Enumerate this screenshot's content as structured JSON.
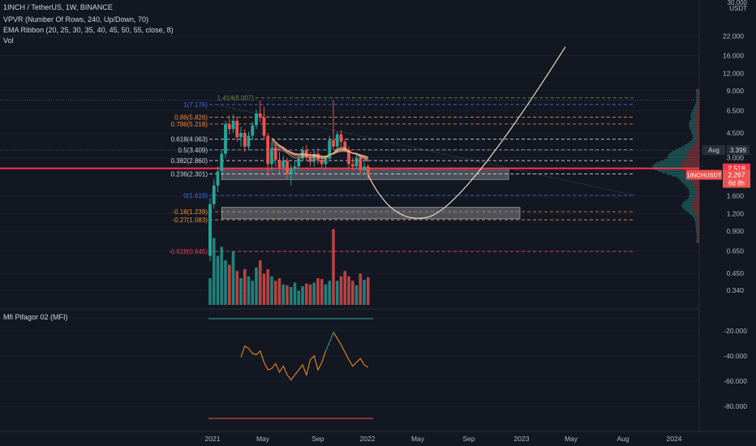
{
  "header": {
    "title": "1INCH / TetherUS, 1W, BINANCE",
    "indicators": [
      "VPVR (Number Of Rows, 240, Up/Down, 70)",
      "EMA Ribbon (20, 25, 30, 35, 40, 45, 50, 55, close, 8)",
      "Vol"
    ],
    "oscillator_title": "Mfi Pifagor 02 (MFI)"
  },
  "price_axis": {
    "top_label": "30.000",
    "unit": "USDT",
    "ticks": [
      "22.000",
      "16.000",
      "12.000",
      "9.000",
      "6.500",
      "4.500",
      "3.000",
      "1.600",
      "1.200",
      "0.900",
      "0.650",
      "0.450",
      "0.340"
    ],
    "avg_label": "Avg",
    "avg_value": "3.399",
    "price_line_value": "2.518",
    "symbol_tag": "1INCHUSDT",
    "last_price": "2.267",
    "countdown": "6d 8h"
  },
  "osc_axis": {
    "ticks": [
      "-20.000",
      "-40.000",
      "-60.000",
      "-80.000"
    ]
  },
  "time_axis": {
    "ticks": [
      "2021",
      "May",
      "Sep",
      "2022",
      "May",
      "Sep",
      "2023",
      "May",
      "Aug",
      "2024"
    ]
  },
  "fib_levels": [
    {
      "label": "1.414(8.007)",
      "value": 8.007,
      "color": "#6a8a4a"
    },
    {
      "label": "1(7.176)",
      "value": 7.176,
      "color": "#3f6fd8"
    },
    {
      "label": "0.86(5.826)",
      "value": 5.826,
      "color": "#ef8c3a"
    },
    {
      "label": "0.786(5.218)",
      "value": 5.218,
      "color": "#ef8c3a"
    },
    {
      "label": "0.618(4.063)",
      "value": 4.063,
      "color": "#d1d4dc"
    },
    {
      "label": "0.5(3.409)",
      "value": 3.409,
      "color": "#d1d4dc"
    },
    {
      "label": "0.382(2.860)",
      "value": 2.86,
      "color": "#d1d4dc"
    },
    {
      "label": "0.236(2.301)",
      "value": 2.301,
      "color": "#d1d4dc"
    },
    {
      "label": "0(1.619)",
      "value": 1.619,
      "color": "#3f6fd8"
    },
    {
      "label": "-0.18(1.239)",
      "value": 1.239,
      "color": "#ef8c3a"
    },
    {
      "label": "-0.27(1.083)",
      "value": 1.083,
      "color": "#ef8c3a"
    },
    {
      "label": "-0.618(0.645)",
      "value": 0.645,
      "color": "#e0454a"
    }
  ],
  "colors": {
    "up": "#26a69a",
    "down": "#ef5350",
    "price_line": "#f23645",
    "ema": "#f5b087",
    "projection": "#f5e6c6",
    "background": "#131722"
  },
  "chart_data": {
    "type": "candlestick",
    "timeframe": "1W",
    "price_scale": "log",
    "ylim": [
      0.3,
      30
    ],
    "candles": [
      {
        "w": 0,
        "o": 0.6,
        "h": 1.55,
        "l": 0.55,
        "c": 1.4
      },
      {
        "w": 1,
        "o": 1.4,
        "h": 2.1,
        "l": 1.3,
        "c": 1.9
      },
      {
        "w": 2,
        "o": 1.9,
        "h": 2.6,
        "l": 1.7,
        "c": 2.4
      },
      {
        "w": 3,
        "o": 2.4,
        "h": 3.4,
        "l": 2.3,
        "c": 3.2
      },
      {
        "w": 4,
        "o": 3.2,
        "h": 5.5,
        "l": 3.0,
        "c": 5.2
      },
      {
        "w": 5,
        "o": 5.2,
        "h": 6.0,
        "l": 4.4,
        "c": 4.8
      },
      {
        "w": 6,
        "o": 4.8,
        "h": 6.1,
        "l": 4.5,
        "c": 5.5
      },
      {
        "w": 7,
        "o": 5.5,
        "h": 5.9,
        "l": 3.9,
        "c": 4.2
      },
      {
        "w": 8,
        "o": 4.2,
        "h": 5.0,
        "l": 3.6,
        "c": 4.5
      },
      {
        "w": 9,
        "o": 4.5,
        "h": 4.8,
        "l": 3.3,
        "c": 3.6
      },
      {
        "w": 10,
        "o": 3.6,
        "h": 4.6,
        "l": 3.4,
        "c": 4.3
      },
      {
        "w": 11,
        "o": 4.3,
        "h": 5.4,
        "l": 4.0,
        "c": 5.1
      },
      {
        "w": 12,
        "o": 5.1,
        "h": 6.6,
        "l": 4.8,
        "c": 6.2
      },
      {
        "w": 13,
        "o": 6.2,
        "h": 7.6,
        "l": 5.4,
        "c": 5.8
      },
      {
        "w": 14,
        "o": 5.8,
        "h": 6.9,
        "l": 4.0,
        "c": 4.3
      },
      {
        "w": 15,
        "o": 4.3,
        "h": 4.5,
        "l": 2.2,
        "c": 2.7
      },
      {
        "w": 16,
        "o": 2.7,
        "h": 3.9,
        "l": 2.4,
        "c": 3.5
      },
      {
        "w": 17,
        "o": 3.5,
        "h": 3.8,
        "l": 2.6,
        "c": 2.9
      },
      {
        "w": 18,
        "o": 2.9,
        "h": 3.3,
        "l": 2.3,
        "c": 2.55
      },
      {
        "w": 19,
        "o": 2.55,
        "h": 3.1,
        "l": 2.35,
        "c": 2.85
      },
      {
        "w": 20,
        "o": 2.85,
        "h": 3.0,
        "l": 2.1,
        "c": 2.3
      },
      {
        "w": 21,
        "o": 2.3,
        "h": 2.7,
        "l": 1.9,
        "c": 2.5
      },
      {
        "w": 22,
        "o": 2.5,
        "h": 2.85,
        "l": 2.3,
        "c": 2.6
      },
      {
        "w": 23,
        "o": 2.6,
        "h": 3.1,
        "l": 2.5,
        "c": 2.95
      },
      {
        "w": 24,
        "o": 2.95,
        "h": 3.6,
        "l": 2.8,
        "c": 3.4
      },
      {
        "w": 25,
        "o": 3.4,
        "h": 3.7,
        "l": 2.9,
        "c": 3.0
      },
      {
        "w": 26,
        "o": 3.0,
        "h": 3.3,
        "l": 2.6,
        "c": 2.8
      },
      {
        "w": 27,
        "o": 2.8,
        "h": 3.4,
        "l": 2.6,
        "c": 3.2
      },
      {
        "w": 28,
        "o": 3.2,
        "h": 3.5,
        "l": 2.7,
        "c": 2.9
      },
      {
        "w": 29,
        "o": 2.9,
        "h": 3.0,
        "l": 2.55,
        "c": 2.7
      },
      {
        "w": 30,
        "o": 2.7,
        "h": 3.1,
        "l": 2.5,
        "c": 2.95
      },
      {
        "w": 31,
        "o": 2.95,
        "h": 4.3,
        "l": 2.9,
        "c": 4.0
      },
      {
        "w": 32,
        "o": 4.0,
        "h": 7.7,
        "l": 3.4,
        "c": 3.6
      },
      {
        "w": 33,
        "o": 3.6,
        "h": 4.6,
        "l": 3.3,
        "c": 4.4
      },
      {
        "w": 34,
        "o": 4.4,
        "h": 4.7,
        "l": 3.6,
        "c": 3.9
      },
      {
        "w": 35,
        "o": 3.9,
        "h": 4.1,
        "l": 3.3,
        "c": 3.4
      },
      {
        "w": 36,
        "o": 3.4,
        "h": 3.6,
        "l": 2.5,
        "c": 2.7
      },
      {
        "w": 37,
        "o": 2.7,
        "h": 3.0,
        "l": 2.45,
        "c": 2.6
      },
      {
        "w": 38,
        "o": 2.6,
        "h": 3.2,
        "l": 2.5,
        "c": 3.0
      },
      {
        "w": 39,
        "o": 3.0,
        "h": 3.1,
        "l": 2.3,
        "c": 2.45
      },
      {
        "w": 40,
        "o": 2.45,
        "h": 2.8,
        "l": 2.25,
        "c": 2.6
      },
      {
        "w": 41,
        "o": 2.6,
        "h": 2.7,
        "l": 2.1,
        "c": 2.267
      }
    ],
    "volume": [
      3,
      7.5,
      5.5,
      6.5,
      5,
      4.5,
      6,
      3.8,
      3,
      4,
      3.2,
      2.7,
      4.2,
      5,
      3.5,
      4,
      3.2,
      2.7,
      3,
      2.3,
      2.2,
      2,
      2.5,
      1.6,
      2.1,
      2.4,
      2.3,
      2.5,
      3,
      2.9,
      2.3,
      2.7,
      8.5,
      2.7,
      3.2,
      3.8,
      3.2,
      2.7,
      2.2,
      3.5,
      2.8,
      3.1
    ],
    "mfi": [
      {
        "w": 8,
        "v": -41
      },
      {
        "w": 9,
        "v": -32
      },
      {
        "w": 10,
        "v": -34
      },
      {
        "w": 11,
        "v": -38
      },
      {
        "w": 12,
        "v": -39
      },
      {
        "w": 13,
        "v": -36
      },
      {
        "w": 14,
        "v": -45
      },
      {
        "w": 15,
        "v": -51
      },
      {
        "w": 16,
        "v": -50
      },
      {
        "w": 17,
        "v": -46
      },
      {
        "w": 18,
        "v": -53
      },
      {
        "w": 19,
        "v": -48
      },
      {
        "w": 20,
        "v": -55
      },
      {
        "w": 21,
        "v": -59
      },
      {
        "w": 22,
        "v": -55
      },
      {
        "w": 23,
        "v": -51
      },
      {
        "w": 24,
        "v": -47
      },
      {
        "w": 25,
        "v": -55
      },
      {
        "w": 26,
        "v": -43
      },
      {
        "w": 27,
        "v": -40
      },
      {
        "w": 28,
        "v": -51
      },
      {
        "w": 29,
        "v": -45
      },
      {
        "w": 30,
        "v": -36
      },
      {
        "w": 31,
        "v": -29
      },
      {
        "w": 32,
        "v": -21
      },
      {
        "w": 33,
        "v": -26
      },
      {
        "w": 34,
        "v": -31
      },
      {
        "w": 35,
        "v": -37
      },
      {
        "w": 36,
        "v": -43
      },
      {
        "w": 37,
        "v": -48
      },
      {
        "w": 38,
        "v": -45
      },
      {
        "w": 39,
        "v": -42
      },
      {
        "w": 40,
        "v": -47
      },
      {
        "w": 41,
        "v": -49
      }
    ],
    "projection": {
      "from_price": 2.267,
      "low_price": 1.13,
      "to_price": 18.5
    },
    "zones": [
      {
        "top": 2.5,
        "bottom": 2.1
      },
      {
        "top": 1.33,
        "bottom": 1.1
      }
    ],
    "poc_price": 2.518,
    "avg_price": 3.399
  }
}
